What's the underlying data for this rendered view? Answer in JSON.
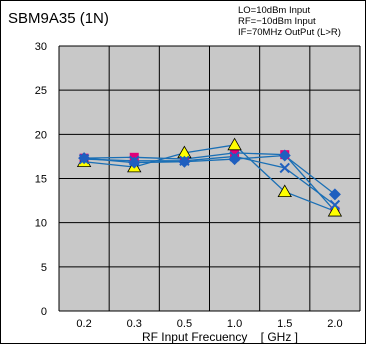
{
  "chart_data": {
    "type": "line",
    "title": "SBM9A35 (1N)",
    "annotations": [
      "LO=10dBm Input",
      "RF=−10dBm Input",
      "IF=70MHz OutPut (L>R)"
    ],
    "xlabel": "RF Input Frecuency    [ GHz ]",
    "ylabel": "",
    "categories": [
      "0.2",
      "0.3",
      "0.5",
      "1.0",
      "1.5",
      "2.0"
    ],
    "yticks": [
      "0",
      "5",
      "10",
      "15",
      "20",
      "25",
      "30"
    ],
    "ylim": [
      0,
      30
    ],
    "grid": true,
    "series": [
      {
        "values": [
          17.3,
          17.4,
          17.2,
          17.9,
          17.7,
          11.3
        ],
        "marker": "square",
        "color": "#e0007a"
      },
      {
        "values": [
          16.9,
          16.3,
          17.9,
          18.8,
          13.5,
          11.3
        ],
        "marker": "triangle",
        "color": "#ffff00"
      },
      {
        "values": [
          17.3,
          16.8,
          16.9,
          17.2,
          17.6,
          13.2
        ],
        "marker": "diamond",
        "color": "#1f5fbf"
      },
      {
        "values": [
          17.2,
          17.0,
          17.0,
          17.5,
          16.2,
          12.0
        ],
        "marker": "x",
        "color": "#1f5fbf"
      }
    ],
    "colors": {
      "plot_bg": "#c8c8c8",
      "grid": "#000000",
      "line": "#1a6fb5"
    }
  }
}
